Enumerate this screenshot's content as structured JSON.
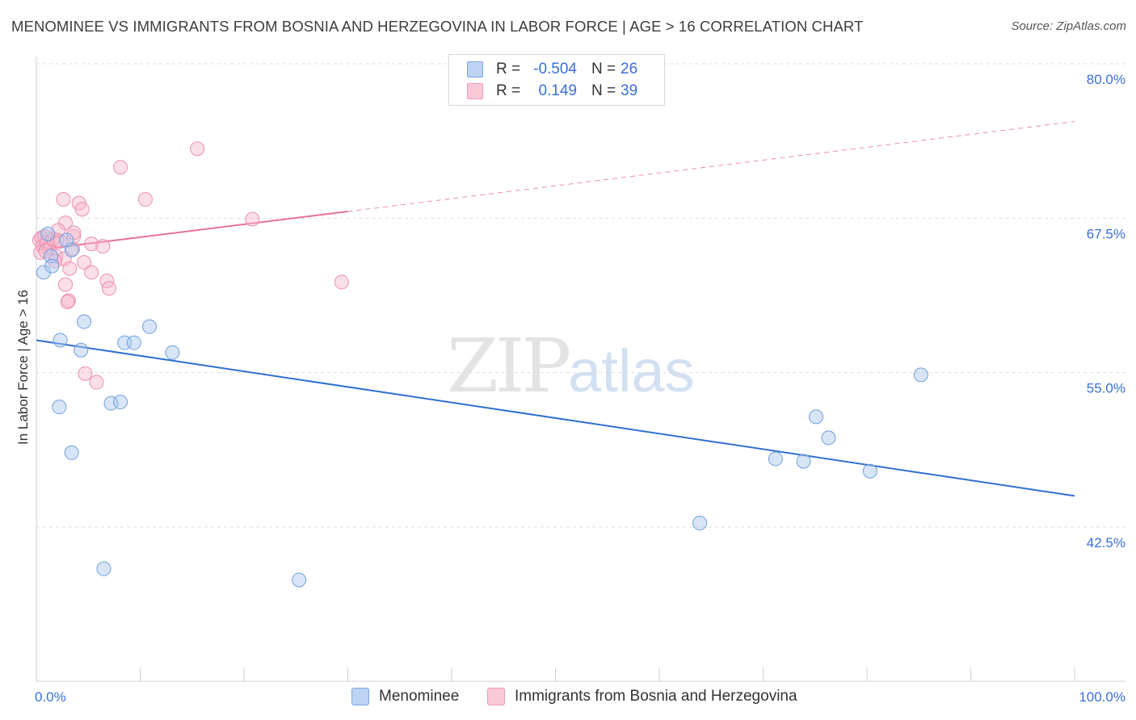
{
  "header": {
    "title": "MENOMINEE VS IMMIGRANTS FROM BOSNIA AND HERZEGOVINA IN LABOR FORCE | AGE > 16 CORRELATION CHART",
    "source": "Source: ZipAtlas.com"
  },
  "watermark": {
    "zip": "ZIP",
    "atlas": "atlas"
  },
  "legend": {
    "rows": [
      {
        "r_label": "R =",
        "r_value": "-0.504",
        "n_label": "N =",
        "n_value": "26"
      },
      {
        "r_label": "R =",
        "r_value": "0.149",
        "n_label": "N =",
        "n_value": "39"
      }
    ]
  },
  "bottom_legend": {
    "items": [
      "Menominee",
      "Immigrants from Bosnia and Herzegovina"
    ]
  },
  "chart_data": {
    "type": "scatter",
    "title": "MENOMINEE VS IMMIGRANTS FROM BOSNIA AND HERZEGOVINA IN LABOR FORCE | AGE > 16 CORRELATION CHART",
    "xlabel": "",
    "ylabel": "In Labor Force | Age > 16",
    "xlim": [
      0,
      100
    ],
    "ylim": [
      30,
      80
    ],
    "x_tick_labels": {
      "left": "0.0%",
      "right": "100.0%"
    },
    "y_ticks": [
      {
        "value": 80.0,
        "label": "80.0%"
      },
      {
        "value": 67.5,
        "label": "67.5%"
      },
      {
        "value": 55.0,
        "label": "55.0%"
      },
      {
        "value": 42.5,
        "label": "42.5%"
      }
    ],
    "grid": true,
    "legend_position": "top-center",
    "series": [
      {
        "name": "Menominee",
        "color": "#a9c6ee",
        "edge_color": "#6f9fdd",
        "line_color": "#2f6fd0",
        "trend": {
          "x": [
            0,
            100
          ],
          "y": [
            58.8,
            46.2
          ],
          "dashed_from": null
        },
        "points": [
          [
            0.7,
            64.3
          ],
          [
            1.1,
            67.4
          ],
          [
            1.4,
            65.6
          ],
          [
            1.5,
            64.8
          ],
          [
            3.4,
            66.1
          ],
          [
            2.3,
            58.8
          ],
          [
            4.3,
            58.0
          ],
          [
            2.2,
            53.4
          ],
          [
            3.4,
            49.7
          ],
          [
            4.6,
            60.3
          ],
          [
            8.5,
            58.6
          ],
          [
            9.4,
            58.6
          ],
          [
            10.9,
            59.9
          ],
          [
            13.1,
            57.8
          ],
          [
            7.2,
            53.7
          ],
          [
            8.1,
            53.8
          ],
          [
            6.5,
            40.3
          ],
          [
            25.3,
            39.4
          ],
          [
            63.9,
            44.0
          ],
          [
            71.2,
            49.2
          ],
          [
            73.9,
            49.0
          ],
          [
            75.1,
            52.6
          ],
          [
            76.3,
            50.9
          ],
          [
            80.3,
            48.2
          ],
          [
            85.2,
            56.0
          ],
          [
            2.9,
            66.9
          ]
        ]
      },
      {
        "name": "Immigrants from Bosnia and Herzegovina",
        "color": "#f7b9cc",
        "edge_color": "#ec8fab",
        "line_color": "#e8709a",
        "trend": {
          "x": [
            0,
            100
          ],
          "y": [
            66.1,
            76.5
          ],
          "solid_until": 30
        },
        "points": [
          [
            0.3,
            66.9
          ],
          [
            0.5,
            67.1
          ],
          [
            0.6,
            66.4
          ],
          [
            0.8,
            67.2
          ],
          [
            1.0,
            66.7
          ],
          [
            1.3,
            66.3
          ],
          [
            1.6,
            67.0
          ],
          [
            1.9,
            65.6
          ],
          [
            2.0,
            66.9
          ],
          [
            2.3,
            66.8
          ],
          [
            2.7,
            65.4
          ],
          [
            2.8,
            63.3
          ],
          [
            3.1,
            62.0
          ],
          [
            3.5,
            66.2
          ],
          [
            3.6,
            67.2
          ],
          [
            3.6,
            67.5
          ],
          [
            4.1,
            69.9
          ],
          [
            4.4,
            69.4
          ],
          [
            4.6,
            65.1
          ],
          [
            4.7,
            56.1
          ],
          [
            5.3,
            66.6
          ],
          [
            5.3,
            64.3
          ],
          [
            5.8,
            55.4
          ],
          [
            6.4,
            66.4
          ],
          [
            6.8,
            63.6
          ],
          [
            7.0,
            63.0
          ],
          [
            8.1,
            72.8
          ],
          [
            10.5,
            70.2
          ],
          [
            15.5,
            74.3
          ],
          [
            20.8,
            68.6
          ],
          [
            29.4,
            63.5
          ],
          [
            2.8,
            68.3
          ],
          [
            2.6,
            70.2
          ],
          [
            3.0,
            61.9
          ],
          [
            1.8,
            65.2
          ],
          [
            0.4,
            65.9
          ],
          [
            3.2,
            64.6
          ],
          [
            2.1,
            67.7
          ],
          [
            0.9,
            66.0
          ]
        ]
      }
    ]
  }
}
